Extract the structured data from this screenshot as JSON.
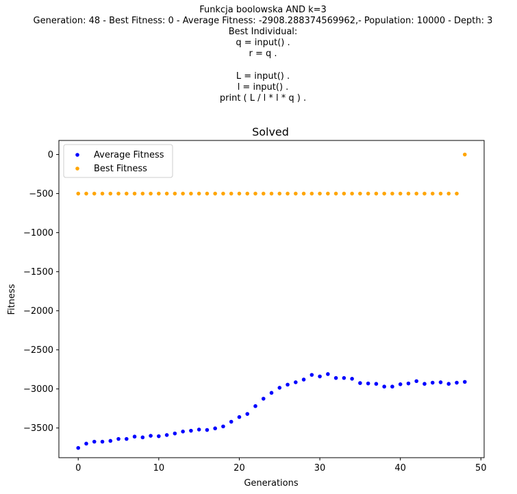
{
  "suptitle": [
    "Funkcja boolowska AND k=3",
    "Generation: 48 - Best Fitness: 0 - Average Fitness: -2908.288374569962,- Population: 10000 - Depth: 3",
    "Best Individual:",
    "q = input() .",
    "r = q .",
    "",
    "L = input() .",
    "l = input() .",
    "print ( L / l * l * q ) ."
  ],
  "chart_data": {
    "type": "scatter",
    "title": "Solved",
    "xlabel": "Generations",
    "ylabel": "Fitness",
    "xlim": [
      -2.4,
      50.4
    ],
    "ylim": [
      -3880,
      180
    ],
    "xticks": [
      0,
      10,
      20,
      30,
      40,
      50
    ],
    "yticks": [
      0,
      -500,
      -1000,
      -1500,
      -2000,
      -2500,
      -3000,
      -3500
    ],
    "ytick_labels": [
      "0",
      "−500",
      "−1000",
      "−1500",
      "−2000",
      "−2500",
      "−3000",
      "−3500"
    ],
    "grid": false,
    "legend_position": "top-left",
    "series": [
      {
        "name": "Average Fitness",
        "color": "#0000ff",
        "x": [
          0,
          1,
          2,
          3,
          4,
          5,
          6,
          7,
          8,
          9,
          10,
          11,
          12,
          13,
          14,
          15,
          16,
          17,
          18,
          19,
          20,
          21,
          22,
          23,
          24,
          25,
          26,
          27,
          28,
          29,
          30,
          31,
          32,
          33,
          34,
          35,
          36,
          37,
          38,
          39,
          40,
          41,
          42,
          43,
          44,
          45,
          46,
          47,
          48
        ],
        "y": [
          -3755,
          -3700,
          -3675,
          -3675,
          -3665,
          -3640,
          -3640,
          -3610,
          -3620,
          -3600,
          -3605,
          -3590,
          -3570,
          -3545,
          -3535,
          -3520,
          -3525,
          -3505,
          -3480,
          -3420,
          -3360,
          -3320,
          -3220,
          -3125,
          -3050,
          -2985,
          -2945,
          -2915,
          -2880,
          -2820,
          -2840,
          -2810,
          -2860,
          -2860,
          -2870,
          -2925,
          -2930,
          -2935,
          -2970,
          -2970,
          -2940,
          -2930,
          -2900,
          -2935,
          -2920,
          -2915,
          -2935,
          -2920,
          -2910
        ]
      },
      {
        "name": "Best Fitness",
        "color": "#ffa500",
        "x": [
          0,
          1,
          2,
          3,
          4,
          5,
          6,
          7,
          8,
          9,
          10,
          11,
          12,
          13,
          14,
          15,
          16,
          17,
          18,
          19,
          20,
          21,
          22,
          23,
          24,
          25,
          26,
          27,
          28,
          29,
          30,
          31,
          32,
          33,
          34,
          35,
          36,
          37,
          38,
          39,
          40,
          41,
          42,
          43,
          44,
          45,
          46,
          47,
          48
        ],
        "y": [
          -500,
          -500,
          -500,
          -500,
          -500,
          -500,
          -500,
          -500,
          -500,
          -500,
          -500,
          -500,
          -500,
          -500,
          -500,
          -500,
          -500,
          -500,
          -500,
          -500,
          -500,
          -500,
          -500,
          -500,
          -500,
          -500,
          -500,
          -500,
          -500,
          -500,
          -500,
          -500,
          -500,
          -500,
          -500,
          -500,
          -500,
          -500,
          -500,
          -500,
          -500,
          -500,
          -500,
          -500,
          -500,
          -500,
          -500,
          -500,
          0
        ]
      }
    ]
  }
}
